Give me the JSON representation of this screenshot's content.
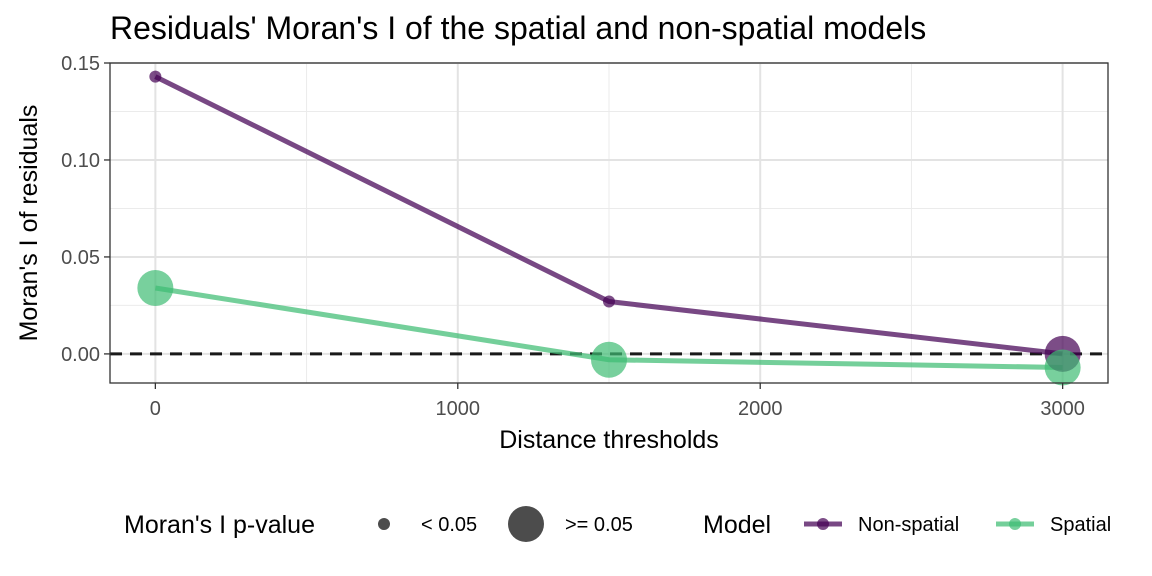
{
  "chart_data": {
    "type": "line",
    "title": "Residuals' Moran's I of the spatial and non-spatial models",
    "xlabel": "Distance thresholds",
    "ylabel": "Moran's I of residuals",
    "xlim": [
      -150,
      3150
    ],
    "ylim": [
      -0.015,
      0.15
    ],
    "x_ticks": [
      0,
      1000,
      2000,
      3000
    ],
    "x_tick_labels": [
      "0",
      "1000",
      "2000",
      "3000"
    ],
    "y_ticks": [
      0.0,
      0.05,
      0.1,
      0.15
    ],
    "y_tick_labels": [
      "0.00",
      "0.05",
      "0.10",
      "0.15"
    ],
    "grid": true,
    "reference_line": {
      "y": 0,
      "style": "dashed"
    },
    "x": [
      0,
      1500,
      3000
    ],
    "series": [
      {
        "name": "Non-spatial",
        "color": "#440154",
        "values": [
          0.143,
          0.027,
          0.0
        ],
        "p_value_group": [
          "< 0.05",
          "< 0.05",
          ">= 0.05"
        ]
      },
      {
        "name": "Spatial",
        "color": "#3fbc73",
        "values": [
          0.034,
          -0.003,
          -0.007
        ],
        "p_value_group": [
          ">= 0.05",
          ">= 0.05",
          ">= 0.05"
        ]
      }
    ],
    "legend": {
      "position": "bottom",
      "size_title": "Moran's I p-value",
      "size_entries": [
        "< 0.05",
        ">= 0.05"
      ],
      "color_title": "Model",
      "color_entries": [
        "Non-spatial",
        "Spatial"
      ]
    }
  }
}
